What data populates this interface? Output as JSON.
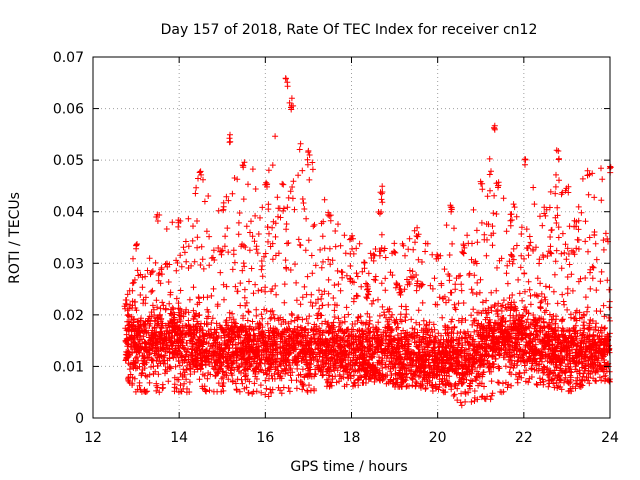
{
  "chart_data": {
    "type": "scatter",
    "title": "Day 157 of 2018, Rate Of TEC Index for receiver cn12",
    "xlabel": "GPS time / hours",
    "ylabel": "ROTI / TECUs",
    "xlim": [
      12,
      24
    ],
    "ylim": [
      0,
      0.07
    ],
    "x_ticks": [
      12,
      14,
      16,
      18,
      20,
      22,
      24
    ],
    "x_tick_labels": [
      "12",
      "14",
      "16",
      "18",
      "20",
      "22",
      "24"
    ],
    "y_ticks": [
      0,
      0.01,
      0.02,
      0.03,
      0.04,
      0.05,
      0.06,
      0.07
    ],
    "y_tick_labels": [
      "0",
      "0.01",
      "0.02",
      "0.03",
      "0.04",
      "0.05",
      "0.06",
      "0.07"
    ],
    "grid": true,
    "marker": "plus",
    "series": [
      {
        "name": "cn12",
        "color": "#ff0000",
        "x_range": [
          12.75,
          24.0
        ],
        "envelope": {
          "x": [
            12.75,
            13.0,
            13.5,
            14.0,
            14.5,
            15.0,
            15.2,
            15.5,
            16.0,
            16.5,
            16.6,
            17.0,
            17.5,
            18.0,
            18.5,
            18.7,
            19.0,
            19.5,
            20.0,
            20.3,
            20.6,
            21.0,
            21.3,
            21.4,
            21.7,
            22.0,
            22.5,
            22.8,
            23.0,
            23.5,
            24.0
          ],
          "upper": [
            0.023,
            0.034,
            0.04,
            0.039,
            0.048,
            0.042,
            0.055,
            0.05,
            0.046,
            0.066,
            0.062,
            0.052,
            0.04,
            0.036,
            0.032,
            0.045,
            0.034,
            0.037,
            0.032,
            0.042,
            0.034,
            0.046,
            0.057,
            0.046,
            0.04,
            0.051,
            0.041,
            0.052,
            0.045,
            0.048,
            0.049
          ],
          "lower": [
            0.008,
            0.005,
            0.005,
            0.005,
            0.005,
            0.005,
            0.005,
            0.005,
            0.004,
            0.005,
            0.005,
            0.005,
            0.006,
            0.006,
            0.007,
            0.007,
            0.006,
            0.006,
            0.005,
            0.005,
            0.002,
            0.004,
            0.003,
            0.004,
            0.006,
            0.007,
            0.006,
            0.005,
            0.005,
            0.006,
            0.007
          ],
          "typical": [
            0.016,
            0.015,
            0.015,
            0.016,
            0.014,
            0.013,
            0.014,
            0.014,
            0.013,
            0.014,
            0.014,
            0.013,
            0.013,
            0.013,
            0.012,
            0.013,
            0.012,
            0.012,
            0.012,
            0.012,
            0.011,
            0.014,
            0.016,
            0.016,
            0.016,
            0.015,
            0.014,
            0.013,
            0.013,
            0.013,
            0.013
          ]
        }
      }
    ]
  }
}
